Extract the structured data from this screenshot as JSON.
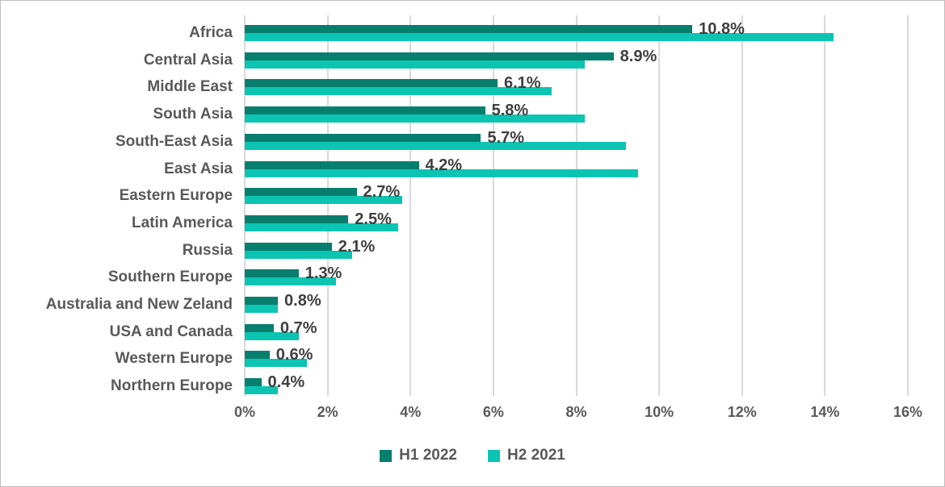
{
  "chart_data": {
    "type": "bar",
    "orientation": "horizontal",
    "title": "",
    "xlabel": "",
    "ylabel": "",
    "xlim": [
      0,
      16
    ],
    "x_ticks": [
      "0%",
      "2%",
      "4%",
      "6%",
      "8%",
      "10%",
      "12%",
      "14%",
      "16%"
    ],
    "x_tick_values": [
      0,
      2,
      4,
      6,
      8,
      10,
      12,
      14,
      16
    ],
    "grid": "vertical",
    "categories": [
      "Africa",
      "Central Asia",
      "Middle East",
      "South Asia",
      "South-East Asia",
      "East Asia",
      "Eastern Europe",
      "Latin America",
      "Russia",
      "Southern Europe",
      "Australia and New Zeland",
      "USA and Canada",
      "Western Europe",
      "Northern Europe"
    ],
    "series": [
      {
        "name": "H1 2022",
        "color": "#087e6e",
        "values": [
          10.8,
          8.9,
          6.1,
          5.8,
          5.7,
          4.2,
          2.7,
          2.5,
          2.1,
          1.3,
          0.8,
          0.7,
          0.6,
          0.4
        ],
        "data_labels": [
          "10.8%",
          "8.9%",
          "6.1%",
          "5.8%",
          "5.7%",
          "4.2%",
          "2.7%",
          "2.5%",
          "2.1%",
          "1.3%",
          "0.8%",
          "0.7%",
          "0.6%",
          "0.4%"
        ]
      },
      {
        "name": "H2 2021",
        "color": "#0cc4b2",
        "values": [
          14.2,
          8.2,
          7.4,
          8.2,
          9.2,
          9.5,
          3.8,
          3.7,
          2.6,
          2.2,
          0.8,
          1.3,
          1.5,
          0.8
        ],
        "data_labels": []
      }
    ],
    "legend": {
      "position": "bottom",
      "entries": [
        "H1 2022",
        "H2 2021"
      ]
    }
  },
  "colors": {
    "grid": "#d9d9d9",
    "category_text": "#595959",
    "axis_text": "#595959",
    "data_label_text": "#3f3f3f",
    "legend_text": "#595959",
    "background": "#ffffff",
    "border": "#bdbdbd"
  }
}
